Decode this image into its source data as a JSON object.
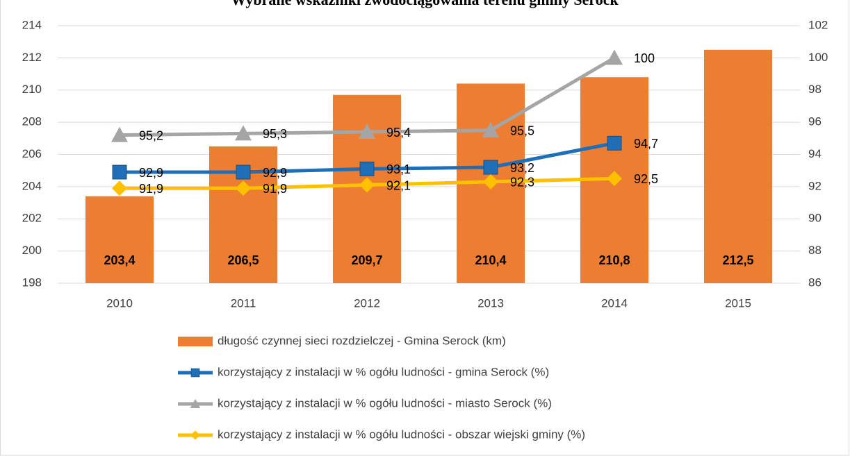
{
  "chart_data": {
    "type": "bar_line",
    "title": "Wybrane wskaźniki zwodociągowania terenu gminy Serock",
    "categories": [
      "2010",
      "2011",
      "2012",
      "2013",
      "2014",
      "2015"
    ],
    "ylim": [
      198,
      214
    ],
    "yticks": [
      198,
      200,
      202,
      204,
      206,
      208,
      210,
      212,
      214
    ],
    "y2lim": [
      86,
      102
    ],
    "y2ticks": [
      86,
      88,
      90,
      92,
      94,
      96,
      98,
      100,
      102
    ],
    "grid": true,
    "series": [
      {
        "name": "długość czynnej sieci rozdzielczej - Gmina Serock (km)",
        "type": "bar",
        "color": "#ED7D31",
        "values": [
          203.4,
          206.5,
          209.7,
          210.4,
          210.8,
          212.5
        ],
        "value_labels": [
          "203,4",
          "206,5",
          "209,7",
          "210,4",
          "210,8",
          "212,5"
        ]
      },
      {
        "name": "korzystający z instalacji w % ogółu ludności - gmina Serock (%)",
        "type": "line",
        "axis": "y2",
        "marker": "square",
        "color": "#1F6FB8",
        "values": [
          92.9,
          92.9,
          93.1,
          93.2,
          94.7,
          null
        ],
        "value_labels": [
          "92,9",
          "92,9",
          "93,1",
          "93,2",
          "94,7",
          null
        ]
      },
      {
        "name": "korzystający z instalacji w % ogółu ludności - miasto Serock (%)",
        "type": "line",
        "axis": "y2",
        "marker": "triangle",
        "color": "#A5A5A5",
        "values": [
          95.2,
          95.3,
          95.4,
          95.5,
          100,
          null
        ],
        "value_labels": [
          "95,2",
          "95,3",
          "95,4",
          "95,5",
          "100",
          null
        ]
      },
      {
        "name": "korzystający z instalacji w % ogółu ludności - obszar wiejski gminy (%)",
        "type": "line",
        "axis": "y2",
        "marker": "diamond",
        "color": "#FFC000",
        "values": [
          91.9,
          91.9,
          92.1,
          92.3,
          92.5,
          null
        ],
        "value_labels": [
          "91,9",
          "91,9",
          "92,1",
          "92,3",
          "92,5",
          null
        ]
      }
    ]
  }
}
